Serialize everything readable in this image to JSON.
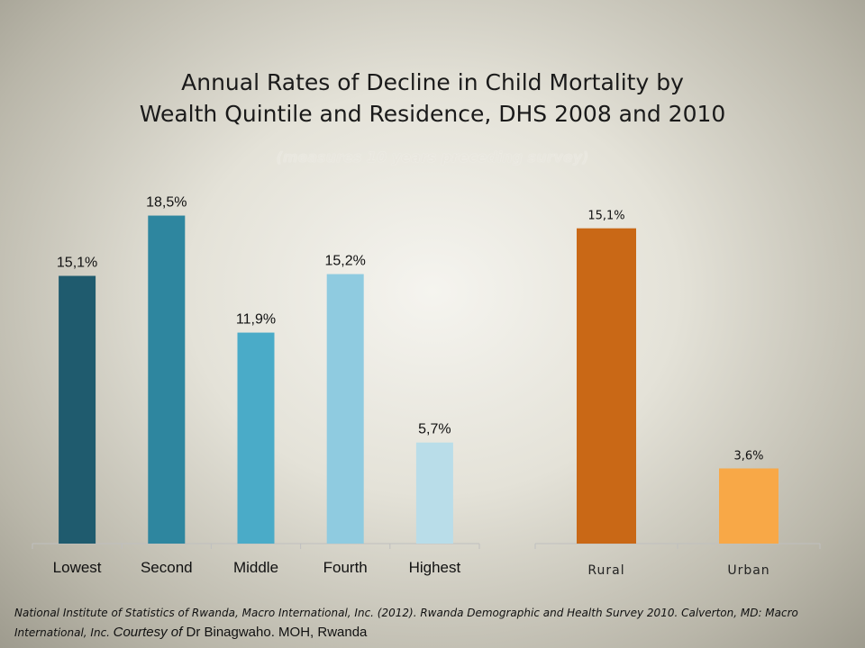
{
  "title_line1": "Annual Rates of Decline in Child Mortality by",
  "title_line2": "Wealth Quintile and Residence, DHS 2008 and 2010",
  "subtitle": "(measures 10 years preceding survey)",
  "footer": {
    "reference": "National Institute of Statistics of Rwanda, Macro International, Inc. (2012). Rwanda Demographic and Health Survey 2010. Calverton, MD: Macro International, Inc.",
    "courtesy_of": "Courtesy of",
    "courtesy_name": "Dr Binagwaho. MOH, Rwanda"
  },
  "chart_data": [
    {
      "type": "bar",
      "categories": [
        "Lowest",
        "Second",
        "Middle",
        "Fourth",
        "Highest"
      ],
      "values": [
        15.1,
        18.5,
        11.9,
        15.2,
        5.7
      ],
      "value_labels": [
        "15,1%",
        "18,5%",
        "11,9%",
        "15,2%",
        "5,7%"
      ],
      "colors": [
        "#1f5b6e",
        "#2e869f",
        "#4aabc8",
        "#8fcbe0",
        "#b9dde9"
      ],
      "ylim": [
        0,
        20
      ]
    },
    {
      "type": "bar",
      "categories": [
        "Rural",
        "Urban"
      ],
      "values": [
        15.1,
        3.6
      ],
      "value_labels": [
        "15,1%",
        "3,6%"
      ],
      "colors": [
        "#c96816",
        "#f8a847"
      ],
      "ylim": [
        0,
        20
      ]
    }
  ]
}
